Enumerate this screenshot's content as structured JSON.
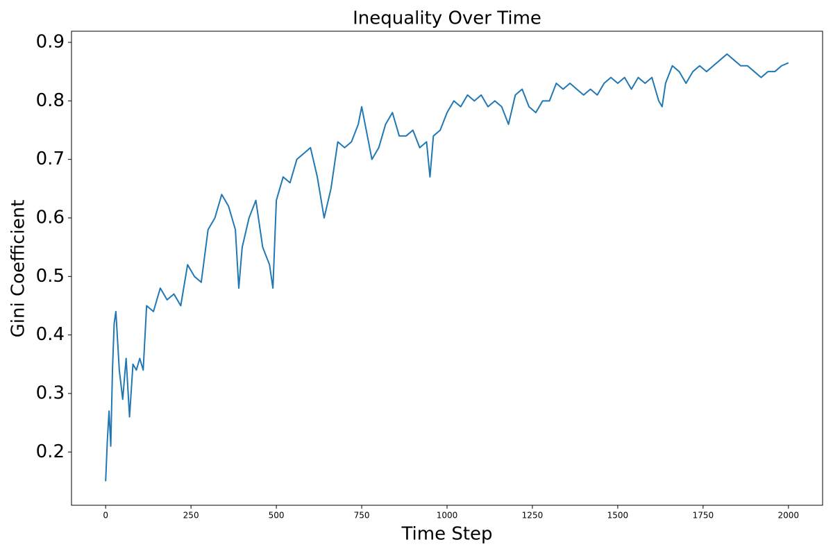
{
  "chart_data": {
    "type": "line",
    "title": "Inequality Over Time",
    "xlabel": "Time Step",
    "ylabel": "Gini Coefficient",
    "x": [
      0,
      5,
      10,
      15,
      20,
      25,
      30,
      40,
      50,
      60,
      70,
      80,
      90,
      100,
      110,
      120,
      140,
      160,
      180,
      200,
      220,
      240,
      260,
      280,
      300,
      320,
      340,
      360,
      380,
      390,
      400,
      420,
      440,
      460,
      480,
      490,
      500,
      520,
      540,
      560,
      580,
      600,
      620,
      640,
      660,
      680,
      700,
      720,
      740,
      750,
      760,
      780,
      800,
      820,
      840,
      860,
      880,
      900,
      920,
      940,
      950,
      960,
      980,
      1000,
      1020,
      1040,
      1060,
      1080,
      1100,
      1120,
      1140,
      1160,
      1180,
      1200,
      1220,
      1240,
      1260,
      1280,
      1300,
      1320,
      1340,
      1360,
      1380,
      1400,
      1420,
      1440,
      1460,
      1480,
      1500,
      1520,
      1540,
      1560,
      1580,
      1600,
      1620,
      1630,
      1640,
      1660,
      1680,
      1700,
      1720,
      1740,
      1760,
      1780,
      1800,
      1820,
      1840,
      1860,
      1880,
      1900,
      1920,
      1940,
      1960,
      1980,
      2000
    ],
    "series": [
      {
        "name": "Gini Coefficient",
        "color": "#1f77b4",
        "values": [
          0.15,
          0.22,
          0.27,
          0.21,
          0.34,
          0.42,
          0.44,
          0.34,
          0.29,
          0.36,
          0.26,
          0.35,
          0.34,
          0.36,
          0.34,
          0.45,
          0.44,
          0.48,
          0.46,
          0.47,
          0.45,
          0.52,
          0.5,
          0.49,
          0.58,
          0.6,
          0.64,
          0.62,
          0.58,
          0.48,
          0.55,
          0.6,
          0.63,
          0.55,
          0.52,
          0.48,
          0.63,
          0.67,
          0.66,
          0.7,
          0.71,
          0.72,
          0.67,
          0.6,
          0.65,
          0.73,
          0.72,
          0.73,
          0.76,
          0.79,
          0.76,
          0.7,
          0.72,
          0.76,
          0.78,
          0.74,
          0.74,
          0.75,
          0.72,
          0.73,
          0.67,
          0.74,
          0.75,
          0.78,
          0.8,
          0.79,
          0.81,
          0.8,
          0.81,
          0.79,
          0.8,
          0.79,
          0.76,
          0.81,
          0.82,
          0.79,
          0.78,
          0.8,
          0.8,
          0.83,
          0.82,
          0.83,
          0.82,
          0.81,
          0.82,
          0.81,
          0.83,
          0.84,
          0.83,
          0.84,
          0.82,
          0.84,
          0.83,
          0.84,
          0.8,
          0.79,
          0.83,
          0.86,
          0.85,
          0.83,
          0.85,
          0.86,
          0.85,
          0.86,
          0.87,
          0.88,
          0.87,
          0.86,
          0.86,
          0.85,
          0.84,
          0.85,
          0.85,
          0.86,
          0.865
        ]
      }
    ],
    "xlim": [
      -100,
      2100
    ],
    "ylim": [
      0.109,
      0.919
    ],
    "xticks": [
      0,
      250,
      500,
      750,
      1000,
      1250,
      1500,
      1750,
      2000
    ],
    "yticks": [
      0.2,
      0.3,
      0.4,
      0.5,
      0.6,
      0.7,
      0.8,
      0.9
    ]
  }
}
